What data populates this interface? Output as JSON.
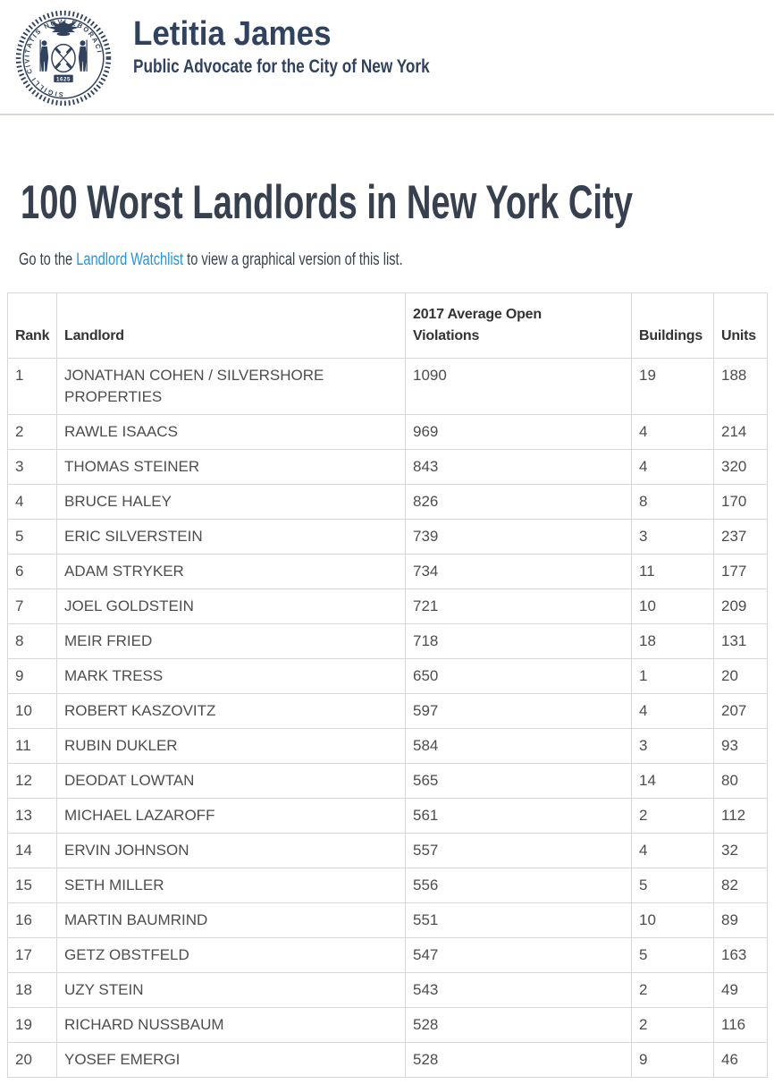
{
  "header": {
    "site_name": "Letitia James",
    "site_subtitle": "Public Advocate for the City of New York",
    "seal_year": "1625",
    "seal_text": "SIGILLI CIVITATIS NOVI EBORACI"
  },
  "main": {
    "title": "100 Worst Landlords in New York City",
    "intro": {
      "before_link": "Go to the ",
      "link_text": "Landlord Watchlist",
      "after_link": " to view a graphical version of this list."
    }
  },
  "table": {
    "columns": [
      "Rank",
      "Landlord",
      "2017 Average Open Violations",
      "Buildings",
      "Units"
    ],
    "rows": [
      [
        "1",
        "JONATHAN COHEN / SILVERSHORE PROPERTIES",
        "1090",
        "19",
        "188"
      ],
      [
        "2",
        "RAWLE ISAACS",
        "969",
        "4",
        "214"
      ],
      [
        "3",
        "THOMAS STEINER",
        "843",
        "4",
        "320"
      ],
      [
        "4",
        "BRUCE HALEY",
        "826",
        "8",
        "170"
      ],
      [
        "5",
        "ERIC SILVERSTEIN",
        "739",
        "3",
        "237"
      ],
      [
        "6",
        "ADAM STRYKER",
        "734",
        "11",
        "177"
      ],
      [
        "7",
        "JOEL GOLDSTEIN",
        "721",
        "10",
        "209"
      ],
      [
        "8",
        "MEIR FRIED",
        "718",
        "18",
        "131"
      ],
      [
        "9",
        "MARK TRESS",
        "650",
        "1",
        "20"
      ],
      [
        "10",
        "ROBERT KASZOVITZ",
        "597",
        "4",
        "207"
      ],
      [
        "11",
        "RUBIN DUKLER",
        "584",
        "3",
        "93"
      ],
      [
        "12",
        "DEODAT LOWTAN",
        "565",
        "14",
        "80"
      ],
      [
        "13",
        "MICHAEL LAZAROFF",
        "561",
        "2",
        "112"
      ],
      [
        "14",
        "ERVIN JOHNSON",
        "557",
        "4",
        "32"
      ],
      [
        "15",
        "SETH MILLER",
        "556",
        "5",
        "82"
      ],
      [
        "16",
        "MARTIN BAUMRIND",
        "551",
        "10",
        "89"
      ],
      [
        "17",
        "GETZ OBSTFELD",
        "547",
        "5",
        "163"
      ],
      [
        "18",
        "UZY STEIN",
        "543",
        "2",
        "49"
      ],
      [
        "19",
        "RICHARD NUSSBAUM",
        "528",
        "2",
        "116"
      ],
      [
        "20",
        "YOSEF EMERGI",
        "528",
        "9",
        "46"
      ]
    ]
  },
  "colors": {
    "navy": "#31425f",
    "title_text": "#36404f",
    "body_text": "#4d4d4d",
    "link_blue": "#2095e9",
    "table_border": "#d8d8d8"
  }
}
